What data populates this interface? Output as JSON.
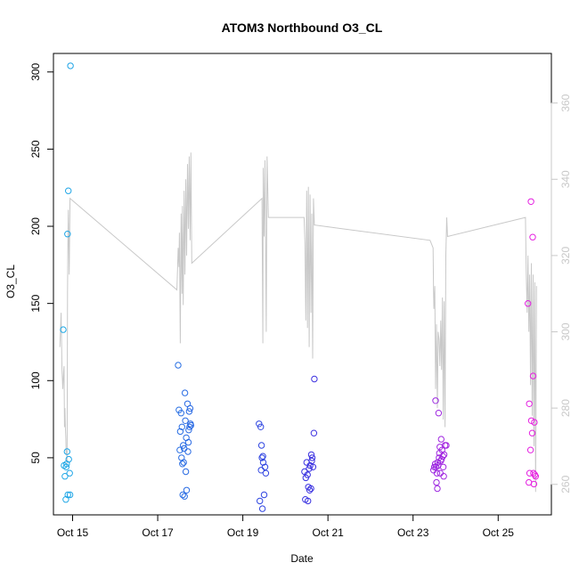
{
  "chart_data": {
    "type": "scatter",
    "title": "ATOM3 Northbound O3_CL",
    "xlabel": "Date",
    "ylabel": "O3_CL",
    "x_unit": "days in October",
    "xlim": [
      14.55,
      26.25
    ],
    "ylim": [
      13,
      312
    ],
    "y_ticks": [
      50,
      100,
      150,
      200,
      250,
      300
    ],
    "x_ticks": [
      {
        "value": 15,
        "label": "Oct 15"
      },
      {
        "value": 17,
        "label": "Oct 17"
      },
      {
        "value": 19,
        "label": "Oct 19"
      },
      {
        "value": 21,
        "label": "Oct 21"
      },
      {
        "value": 23,
        "label": "Oct 23"
      },
      {
        "value": 25,
        "label": "Oct 25"
      }
    ],
    "y2lim": [
      252,
      373
    ],
    "y2_ticks": [
      260,
      280,
      300,
      320,
      340,
      360
    ],
    "grid": false,
    "legend": "none",
    "colors": {
      "points_start": "#1ea8e6",
      "points_mid": "#3333e0",
      "points_end": "#e81ee0",
      "line": "#c8c8c8",
      "axis": "#000000",
      "axis_right": "#c8c8c8"
    },
    "series": [
      {
        "type": "scatter",
        "points": [
          [
            14.78,
            133
          ],
          [
            14.8,
            45
          ],
          [
            14.82,
            38
          ],
          [
            14.84,
            23
          ],
          [
            14.85,
            44
          ],
          [
            14.86,
            46
          ],
          [
            14.87,
            54
          ],
          [
            14.88,
            195
          ],
          [
            14.89,
            26
          ],
          [
            14.9,
            223
          ],
          [
            14.91,
            49
          ],
          [
            14.93,
            40
          ],
          [
            14.94,
            26
          ],
          [
            14.95,
            304
          ],
          [
            17.48,
            110
          ],
          [
            17.5,
            81
          ],
          [
            17.52,
            55
          ],
          [
            17.53,
            67
          ],
          [
            17.55,
            79
          ],
          [
            17.56,
            50
          ],
          [
            17.57,
            70
          ],
          [
            17.58,
            46
          ],
          [
            17.59,
            26
          ],
          [
            17.6,
            58
          ],
          [
            17.61,
            47
          ],
          [
            17.62,
            56
          ],
          [
            17.63,
            25
          ],
          [
            17.64,
            92
          ],
          [
            17.65,
            74
          ],
          [
            17.66,
            41
          ],
          [
            17.67,
            63
          ],
          [
            17.68,
            29
          ],
          [
            17.7,
            85
          ],
          [
            17.71,
            54
          ],
          [
            17.72,
            60
          ],
          [
            17.73,
            68
          ],
          [
            17.74,
            80
          ],
          [
            17.75,
            70
          ],
          [
            17.76,
            82
          ],
          [
            17.77,
            72
          ],
          [
            17.78,
            71
          ],
          [
            19.38,
            72
          ],
          [
            19.4,
            22
          ],
          [
            19.42,
            70
          ],
          [
            19.43,
            42
          ],
          [
            19.44,
            58
          ],
          [
            19.45,
            50
          ],
          [
            19.46,
            17
          ],
          [
            19.47,
            51
          ],
          [
            19.48,
            47
          ],
          [
            19.5,
            26
          ],
          [
            19.52,
            44
          ],
          [
            19.54,
            40
          ],
          [
            20.45,
            41
          ],
          [
            20.47,
            23
          ],
          [
            20.48,
            37
          ],
          [
            20.5,
            47
          ],
          [
            20.52,
            39
          ],
          [
            20.53,
            22
          ],
          [
            20.54,
            31
          ],
          [
            20.56,
            43
          ],
          [
            20.57,
            29
          ],
          [
            20.58,
            45
          ],
          [
            20.6,
            30
          ],
          [
            20.61,
            52
          ],
          [
            20.62,
            48
          ],
          [
            20.63,
            50
          ],
          [
            20.65,
            44
          ],
          [
            20.67,
            66
          ],
          [
            20.68,
            101
          ],
          [
            23.48,
            42
          ],
          [
            23.5,
            44
          ],
          [
            23.52,
            46
          ],
          [
            23.53,
            87
          ],
          [
            23.54,
            44
          ],
          [
            23.55,
            34
          ],
          [
            23.56,
            40
          ],
          [
            23.57,
            30
          ],
          [
            23.58,
            47
          ],
          [
            23.59,
            45
          ],
          [
            23.6,
            79
          ],
          [
            23.61,
            50
          ],
          [
            23.62,
            53
          ],
          [
            23.63,
            57
          ],
          [
            23.64,
            40
          ],
          [
            23.65,
            48
          ],
          [
            23.66,
            62
          ],
          [
            23.67,
            49
          ],
          [
            23.68,
            55
          ],
          [
            23.7,
            51
          ],
          [
            23.71,
            44
          ],
          [
            23.72,
            38
          ],
          [
            23.73,
            52
          ],
          [
            23.75,
            58
          ],
          [
            23.78,
            58
          ],
          [
            25.7,
            150
          ],
          [
            25.72,
            34
          ],
          [
            25.73,
            85
          ],
          [
            25.74,
            40
          ],
          [
            25.76,
            55
          ],
          [
            25.77,
            216
          ],
          [
            25.78,
            74
          ],
          [
            25.8,
            66
          ],
          [
            25.81,
            193
          ],
          [
            25.82,
            103
          ],
          [
            25.83,
            40
          ],
          [
            25.84,
            33
          ],
          [
            25.85,
            73
          ],
          [
            25.86,
            39
          ],
          [
            25.88,
            38
          ]
        ]
      },
      {
        "type": "line",
        "axis": "right",
        "points": [
          [
            14.7,
            296
          ],
          [
            14.73,
            305
          ],
          [
            14.75,
            290
          ],
          [
            14.77,
            285
          ],
          [
            14.79,
            290
          ],
          [
            14.8,
            291
          ],
          [
            14.81,
            275
          ],
          [
            14.82,
            280
          ],
          [
            14.83,
            275
          ],
          [
            14.84,
            272
          ],
          [
            14.85,
            268
          ],
          [
            14.86,
            269
          ],
          [
            14.87,
            265
          ],
          [
            14.88,
            310
          ],
          [
            14.89,
            322
          ],
          [
            14.9,
            332
          ],
          [
            14.92,
            315
          ],
          [
            14.94,
            335
          ],
          [
            17.45,
            311
          ],
          [
            17.47,
            318
          ],
          [
            17.48,
            322
          ],
          [
            17.5,
            317
          ],
          [
            17.51,
            326
          ],
          [
            17.53,
            297
          ],
          [
            17.55,
            331
          ],
          [
            17.57,
            310
          ],
          [
            17.58,
            333
          ],
          [
            17.6,
            307
          ],
          [
            17.62,
            337
          ],
          [
            17.64,
            315
          ],
          [
            17.66,
            340
          ],
          [
            17.68,
            320
          ],
          [
            17.7,
            344
          ],
          [
            17.72,
            327
          ],
          [
            17.74,
            346
          ],
          [
            17.76,
            324
          ],
          [
            17.78,
            347
          ],
          [
            17.8,
            318
          ],
          [
            19.45,
            335
          ],
          [
            19.47,
            297
          ],
          [
            19.48,
            343
          ],
          [
            19.5,
            325
          ],
          [
            19.52,
            345
          ],
          [
            19.55,
            300
          ],
          [
            19.57,
            346
          ],
          [
            19.6,
            330
          ],
          [
            20.44,
            330
          ],
          [
            20.46,
            323
          ],
          [
            20.48,
            303
          ],
          [
            20.5,
            337
          ],
          [
            20.52,
            301
          ],
          [
            20.54,
            338
          ],
          [
            20.56,
            296
          ],
          [
            20.58,
            336
          ],
          [
            20.6,
            305
          ],
          [
            20.62,
            331
          ],
          [
            20.64,
            293
          ],
          [
            20.66,
            335
          ],
          [
            20.68,
            328
          ],
          [
            23.4,
            324
          ],
          [
            23.47,
            322
          ],
          [
            23.48,
            311
          ],
          [
            23.49,
            306
          ],
          [
            23.51,
            312
          ],
          [
            23.53,
            285
          ],
          [
            23.55,
            302
          ],
          [
            23.57,
            280
          ],
          [
            23.59,
            300
          ],
          [
            23.61,
            298
          ],
          [
            23.63,
            291
          ],
          [
            23.65,
            303
          ],
          [
            23.67,
            290
          ],
          [
            23.69,
            309
          ],
          [
            23.71,
            277
          ],
          [
            23.73,
            308
          ],
          [
            23.75,
            275
          ],
          [
            23.77,
            320
          ],
          [
            23.79,
            330
          ],
          [
            23.81,
            325
          ],
          [
            25.64,
            330
          ],
          [
            25.66,
            315
          ],
          [
            25.68,
            305
          ],
          [
            25.7,
            320
          ],
          [
            25.72,
            300
          ],
          [
            25.74,
            315
          ],
          [
            25.76,
            286
          ],
          [
            25.78,
            318
          ],
          [
            25.8,
            278
          ],
          [
            25.82,
            315
          ],
          [
            25.84,
            270
          ],
          [
            25.86,
            313
          ],
          [
            25.88,
            258
          ],
          [
            25.9,
            312
          ]
        ]
      }
    ]
  }
}
